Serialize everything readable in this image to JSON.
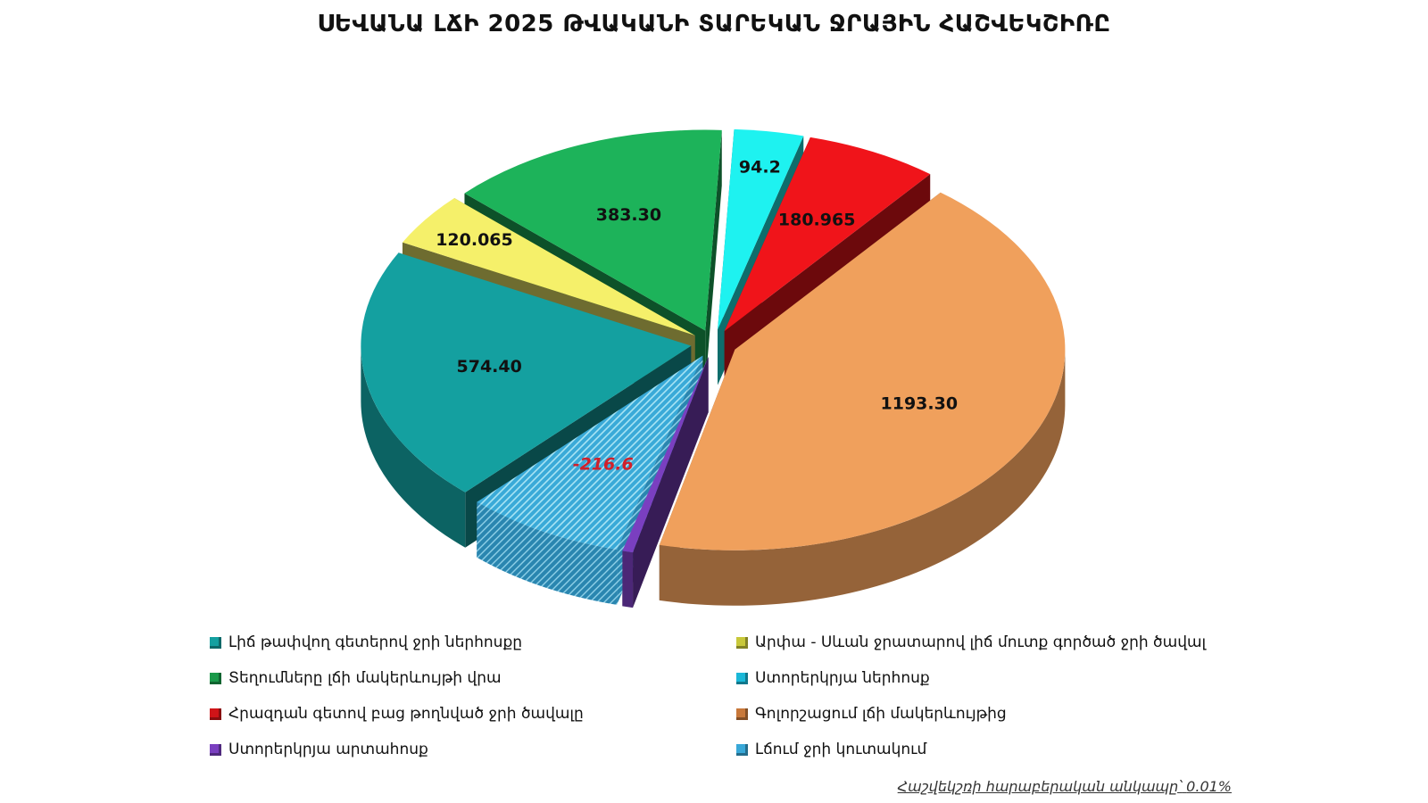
{
  "title": "ՍԵՎԱՆԱ ԼՃԻ 2025 ԹՎԱԿԱՆԻ ՏԱՐԵԿԱՆ ՋՐԱՅԻՆ ՀԱՇՎԵԿՇԻՌԸ",
  "chart_data": {
    "type": "pie",
    "title": "ՍԵՎԱՆԱ ԼՃԻ 2025 ԹՎԱԿԱՆԻ ՏԱՐԵԿԱՆ ՋՐԱՅԻՆ ՀԱՇՎԵԿՇԻՌԸ",
    "legend_placement": "bottom",
    "slices": [
      {
        "label": "Լիճ թափվող գետերով ջրի ներհոսքը",
        "value": 574.4,
        "display": "574.40",
        "color": "#14a0a0"
      },
      {
        "label": "Արփա - Սևան ջրատարով լիճ մուտք գործած ջրի ծավալ",
        "value": 120.065,
        "display": "120.065",
        "color": "#f5f06a"
      },
      {
        "label": "Տեղումները լճի մակերևույթի  վրա",
        "value": 383.3,
        "display": "383.30",
        "color": "#1db35a"
      },
      {
        "label": "Ստորերկրյա ներհոսք",
        "value": 94.2,
        "display": "94.2",
        "color": "#1ef2f0"
      },
      {
        "label": "Հրազդան գետով բաց թողնված ջրի ծավալը",
        "value": 180.965,
        "display": "180.965",
        "color": "#f0141a"
      },
      {
        "label": "Գոլորշացում լճի մակերևույթից",
        "value": 1193.3,
        "display": "1193.30",
        "color": "#f0a05c"
      },
      {
        "label": "Ստորերկրյա արտահոսք",
        "value": 14.4,
        "display": "14.4",
        "color": "#7a3fc0"
      },
      {
        "label": "Լճում ջրի կուտակում",
        "value": -216.6,
        "display": "-216.6",
        "color": "#38b4e0"
      }
    ]
  },
  "legend": [
    {
      "label": "Լիճ թափվող գետերով ջրի ներհոսքը",
      "color": "#14a0a0"
    },
    {
      "label": "Արփա - Սևան ջրատարով լիճ մուտք գործած ջրի ծավալ",
      "color": "#c8c83a"
    },
    {
      "label": "Տեղումները լճի մակերևույթի  վրա",
      "color": "#1a9a4a"
    },
    {
      "label": "Ստորերկրյա ներհոսք",
      "color": "#1ab8d8"
    },
    {
      "label": "Հրազդան գետով բաց թողնված ջրի ծավալը",
      "color": "#d01418"
    },
    {
      "label": "Գոլորշացում լճի մակերևույթից",
      "color": "#c8783a"
    },
    {
      "label": "Ստորերկրյա արտահոսք",
      "color": "#7a3fc0"
    },
    {
      "label": "Լճում ջրի կուտակում",
      "color": "#38a8d8"
    }
  ],
  "note": {
    "text": "Հաշվեկշռի հարաբերական անկապը՝",
    "value": "0.01%"
  }
}
